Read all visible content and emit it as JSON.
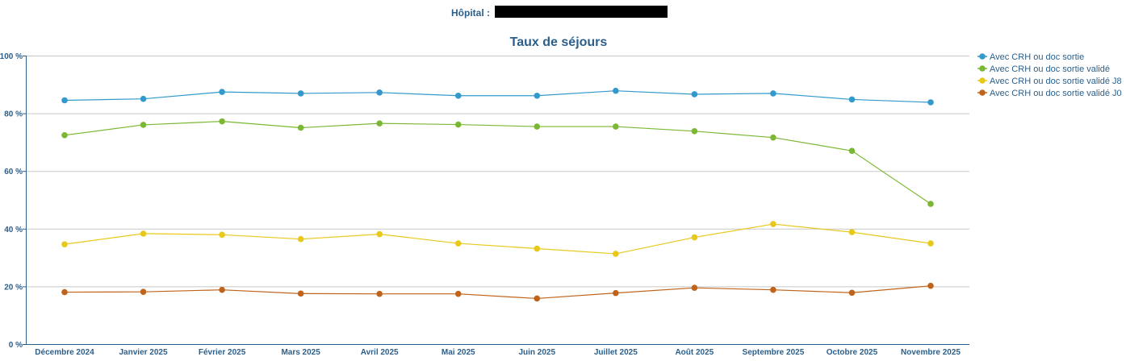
{
  "header": {
    "hopital_label": "Hôpital :",
    "hopital_value": ""
  },
  "chart_data": {
    "type": "line",
    "title": "Taux de séjours",
    "xlabel": "",
    "ylabel": "",
    "ylim": [
      0,
      100
    ],
    "yticks": [
      "0 %",
      "20 %",
      "40 %",
      "60 %",
      "80 %",
      "100 %"
    ],
    "ytick_values": [
      0,
      20,
      40,
      60,
      80,
      100
    ],
    "grid": true,
    "legend_position": "right",
    "categories": [
      "Décembre 2024",
      "Janvier 2025",
      "Février 2025",
      "Mars 2025",
      "Avril 2025",
      "Mai 2025",
      "Juin 2025",
      "Juillet 2025",
      "Août 2025",
      "Septembre 2025",
      "Octobre 2025",
      "Novembre 2025"
    ],
    "series": [
      {
        "name": "Avec CRH ou doc sortie",
        "color": "#3399cc",
        "values": [
          84.5,
          85,
          87.4,
          86.9,
          87.2,
          86.1,
          86.1,
          87.8,
          86.6,
          86.9,
          84.8,
          83.8
        ]
      },
      {
        "name": "Avec CRH ou doc sortie validé",
        "color": "#7ab833",
        "values": [
          72.4,
          76,
          77.2,
          75,
          76.5,
          76.1,
          75.4,
          75.4,
          73.8,
          71.6,
          67,
          48.6
        ]
      },
      {
        "name": "Avec CRH ou doc sortie validé J8",
        "color": "#e8c81a",
        "values": [
          34.6,
          38.3,
          37.9,
          36.4,
          38.1,
          34.9,
          33.1,
          31.3,
          37,
          41.6,
          38.8,
          34.9
        ]
      },
      {
        "name": "Avec CRH ou doc sortie validé J0",
        "color": "#c0631a",
        "values": [
          18,
          18.1,
          18.8,
          17.5,
          17.4,
          17.4,
          15.8,
          17.7,
          19.5,
          18.8,
          17.8,
          20.2
        ]
      }
    ]
  }
}
